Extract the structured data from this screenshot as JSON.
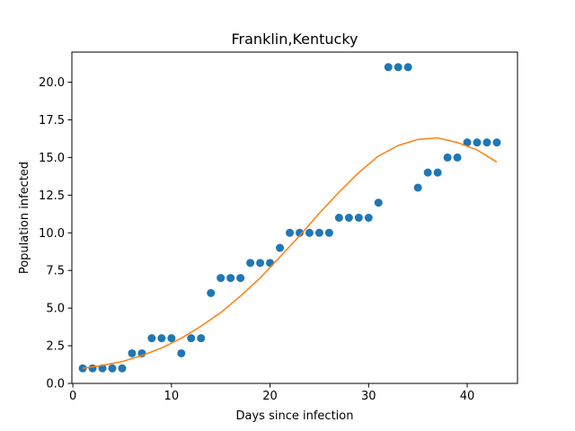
{
  "chart_data": {
    "type": "scatter",
    "title": "Franklin,Kentucky",
    "xlabel": "Days since infection",
    "ylabel": "Population infected",
    "xlim": [
      -0.1,
      45.1
    ],
    "ylim": [
      0,
      22
    ],
    "xticks": [
      0,
      10,
      20,
      30,
      40
    ],
    "xtick_labels": [
      "0",
      "10",
      "20",
      "30",
      "40"
    ],
    "yticks": [
      0,
      2.5,
      5,
      7.5,
      10,
      12.5,
      15,
      17.5,
      20
    ],
    "ytick_labels": [
      "0.0",
      "2.5",
      "5.0",
      "7.5",
      "10.0",
      "12.5",
      "15.0",
      "17.5",
      "20.0"
    ],
    "grid": false,
    "series": [
      {
        "kind": "scatter",
        "color": "#1f77b4",
        "x": [
          1,
          2,
          3,
          4,
          5,
          6,
          7,
          8,
          9,
          10,
          11,
          12,
          13,
          14,
          15,
          16,
          17,
          18,
          19,
          20,
          21,
          22,
          23,
          24,
          25,
          26,
          27,
          28,
          29,
          30,
          31,
          32,
          33,
          34,
          35,
          36,
          37,
          38,
          39,
          40,
          41,
          42,
          43
        ],
        "y": [
          1,
          1,
          1,
          1,
          1,
          2,
          2,
          3,
          3,
          3,
          2,
          3,
          3,
          6,
          7,
          7,
          7,
          8,
          8,
          8,
          9,
          10,
          10,
          10,
          10,
          10,
          11,
          11,
          11,
          11,
          12,
          21,
          21,
          21,
          13,
          14,
          14,
          15,
          15,
          16,
          16,
          16,
          16
        ]
      },
      {
        "kind": "line",
        "color": "#ff7f0e",
        "x": [
          1,
          3,
          5,
          7,
          9,
          11,
          13,
          15,
          17,
          19,
          21,
          23,
          25,
          27,
          29,
          31,
          33,
          35,
          37,
          39,
          41,
          43
        ],
        "y": [
          1.0,
          1.2,
          1.45,
          1.85,
          2.35,
          3.0,
          3.8,
          4.7,
          5.8,
          7.0,
          8.4,
          9.8,
          11.3,
          12.7,
          14.0,
          15.1,
          15.8,
          16.2,
          16.3,
          16.0,
          15.5,
          14.7
        ]
      }
    ]
  }
}
